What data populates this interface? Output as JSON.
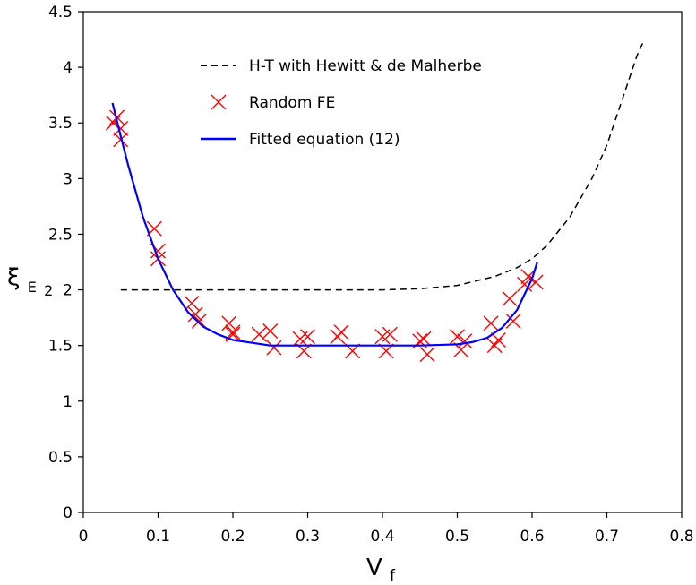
{
  "chart_data": {
    "type": "line",
    "title": "",
    "xlabel": "V",
    "xlabel_sub": "f",
    "ylabel": "ξ",
    "ylabel_sub": "E",
    "ylabel_subsub": "2",
    "xlim": [
      0,
      0.8
    ],
    "ylim": [
      0,
      4.5
    ],
    "xticks": [
      0,
      0.1,
      0.2,
      0.3,
      0.4,
      0.5,
      0.6,
      0.7,
      0.8
    ],
    "xtick_labels": [
      "0",
      "0.1",
      "0.2",
      "0.3",
      "0.4",
      "0.5",
      "0.6",
      "0.7",
      "0.8"
    ],
    "yticks": [
      0,
      0.5,
      1,
      1.5,
      2,
      2.5,
      3,
      3.5,
      4,
      4.5
    ],
    "ytick_labels": [
      "0",
      "0.5",
      "1",
      "1.5",
      "2",
      "2.5",
      "3",
      "3.5",
      "4",
      "4.5"
    ],
    "grid": false,
    "legend_position": "top-center",
    "series": [
      {
        "name": "H-T with Hewitt & de Malherbe",
        "kind": "line",
        "style": "dashed",
        "color": "#000000",
        "x": [
          0.05,
          0.1,
          0.15,
          0.2,
          0.25,
          0.3,
          0.35,
          0.4,
          0.45,
          0.5,
          0.55,
          0.58,
          0.6,
          0.62,
          0.65,
          0.68,
          0.7,
          0.72,
          0.74,
          0.75
        ],
        "y": [
          2.0,
          2.0,
          2.0,
          2.0,
          2.0,
          2.0,
          2.0,
          2.0,
          2.01,
          2.04,
          2.12,
          2.2,
          2.28,
          2.4,
          2.65,
          3.0,
          3.3,
          3.7,
          4.1,
          4.25
        ]
      },
      {
        "name": "Random FE",
        "kind": "scatter",
        "marker": "x",
        "color": "#ff0000",
        "x": [
          0.04,
          0.045,
          0.05,
          0.05,
          0.095,
          0.1,
          0.1,
          0.145,
          0.15,
          0.155,
          0.195,
          0.2,
          0.2,
          0.235,
          0.25,
          0.255,
          0.29,
          0.295,
          0.3,
          0.34,
          0.345,
          0.36,
          0.4,
          0.405,
          0.41,
          0.45,
          0.455,
          0.46,
          0.5,
          0.505,
          0.51,
          0.545,
          0.55,
          0.555,
          0.57,
          0.575,
          0.59,
          0.595,
          0.605
        ],
        "y": [
          3.5,
          3.55,
          3.45,
          3.35,
          2.55,
          2.35,
          2.28,
          1.88,
          1.78,
          1.72,
          1.7,
          1.62,
          1.6,
          1.6,
          1.63,
          1.48,
          1.56,
          1.45,
          1.58,
          1.58,
          1.62,
          1.45,
          1.58,
          1.45,
          1.6,
          1.54,
          1.56,
          1.42,
          1.58,
          1.46,
          1.54,
          1.7,
          1.5,
          1.55,
          1.92,
          1.72,
          2.05,
          2.12,
          2.07
        ]
      },
      {
        "name": "Fitted equation (12)",
        "kind": "line",
        "style": "solid",
        "color": "#0000ff",
        "x": [
          0.039,
          0.05,
          0.06,
          0.08,
          0.1,
          0.12,
          0.14,
          0.16,
          0.18,
          0.2,
          0.25,
          0.3,
          0.35,
          0.4,
          0.45,
          0.5,
          0.52,
          0.54,
          0.56,
          0.58,
          0.6,
          0.607
        ],
        "y": [
          3.68,
          3.38,
          3.12,
          2.65,
          2.28,
          2.0,
          1.8,
          1.67,
          1.6,
          1.55,
          1.5,
          1.5,
          1.5,
          1.5,
          1.5,
          1.51,
          1.53,
          1.57,
          1.66,
          1.82,
          2.1,
          2.25
        ]
      }
    ]
  }
}
